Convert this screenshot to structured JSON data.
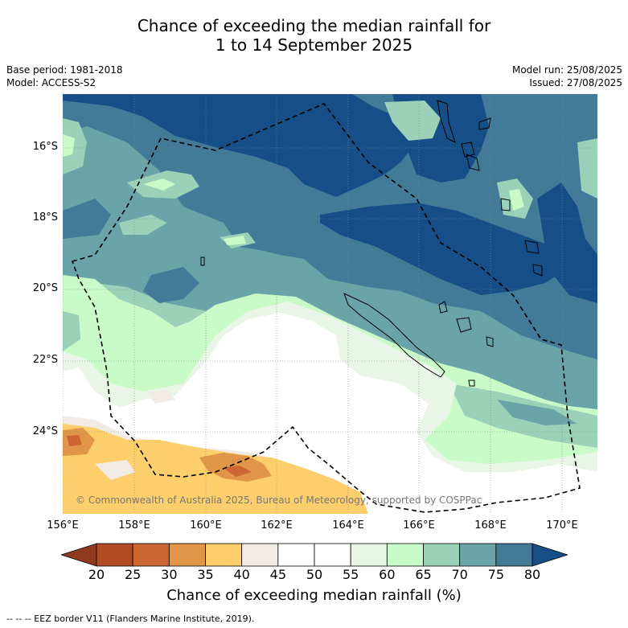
{
  "header": {
    "title_line1": "Chance of exceeding the median rainfall for",
    "title_line2": "1 to 14 September 2025",
    "base_period": "Base period: 1981-2018",
    "model": "Model: ACCESS-S2",
    "model_run": "Model run: 25/08/2025",
    "issued": "Issued: 27/08/2025"
  },
  "map": {
    "lat_labels": [
      "16°S",
      "18°S",
      "20°S",
      "22°S",
      "24°S"
    ],
    "lon_labels": [
      "156°E",
      "158°E",
      "160°E",
      "162°E",
      "164°E",
      "166°E",
      "168°E",
      "170°E"
    ],
    "credit": "© Commonwealth of Australia 2025, Bureau of Meteorology, supported by COSPPac"
  },
  "colorbar": {
    "labels": [
      "20",
      "25",
      "30",
      "35",
      "40",
      "45",
      "50",
      "55",
      "60",
      "65",
      "70",
      "75",
      "80"
    ],
    "colors": [
      "#8f3a1e",
      "#b24a22",
      "#cc6633",
      "#e09548",
      "#fdcf6c",
      "#f0ebe5",
      "#ffffff",
      "#ffffff",
      "#e9f5e6",
      "#c9fbc8",
      "#9ad1b8",
      "#6aa3a8",
      "#427a98",
      "#164e88"
    ],
    "title": "Chance of exceeding median rainfall (%)"
  },
  "footer": {
    "note": "-- -- -- EEZ border V11 (Flanders Marine Institute, 2019)."
  }
}
